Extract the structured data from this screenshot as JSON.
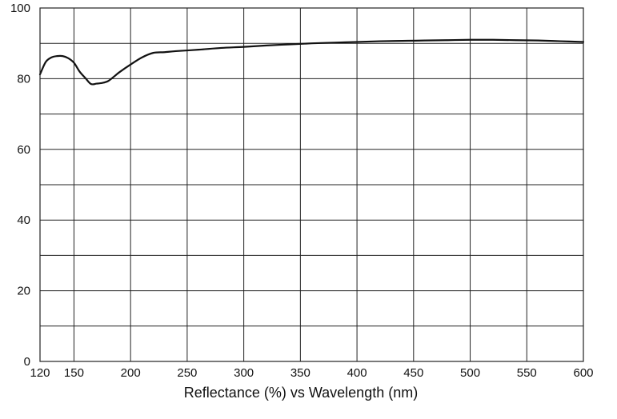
{
  "chart_data": {
    "type": "line",
    "title": "",
    "xlabel": "Reflectance (%)  vs  Wavelength (nm)",
    "ylabel": "",
    "xlim": [
      120,
      600
    ],
    "ylim": [
      0,
      100
    ],
    "x_ticks": [
      120,
      150,
      200,
      250,
      300,
      350,
      400,
      450,
      500,
      550,
      600
    ],
    "x_tick_labels": [
      "120",
      "150",
      "200",
      "250",
      "300",
      "350",
      "400",
      "450",
      "500",
      "550",
      "600"
    ],
    "y_ticks": [
      0,
      20,
      40,
      60,
      80,
      100
    ],
    "y_tick_labels": [
      "0",
      "20",
      "40",
      "60",
      "80",
      "100"
    ],
    "y_gridlines": [
      0,
      10,
      20,
      30,
      40,
      50,
      60,
      70,
      80,
      90,
      100
    ],
    "grid": true,
    "legend": "none",
    "line_color": "#111111",
    "grid_color": "#222222",
    "series": [
      {
        "x": [
          120,
          125,
          130,
          135,
          140,
          145,
          150,
          155,
          160,
          165,
          170,
          175,
          180,
          185,
          190,
          200,
          210,
          220,
          230,
          240,
          260,
          280,
          300,
          320,
          340,
          360,
          380,
          400,
          420,
          440,
          460,
          480,
          500,
          520,
          540,
          560,
          580,
          600
        ],
        "y": [
          81.2,
          84.7,
          86.0,
          86.4,
          86.4,
          85.8,
          84.5,
          82.0,
          80.2,
          78.5,
          78.6,
          78.8,
          79.3,
          80.5,
          81.8,
          84.0,
          86.0,
          87.3,
          87.5,
          87.8,
          88.2,
          88.7,
          89.0,
          89.4,
          89.7,
          90.0,
          90.2,
          90.4,
          90.6,
          90.7,
          90.8,
          90.9,
          91.0,
          91.0,
          90.9,
          90.8,
          90.6,
          90.4
        ]
      }
    ]
  }
}
